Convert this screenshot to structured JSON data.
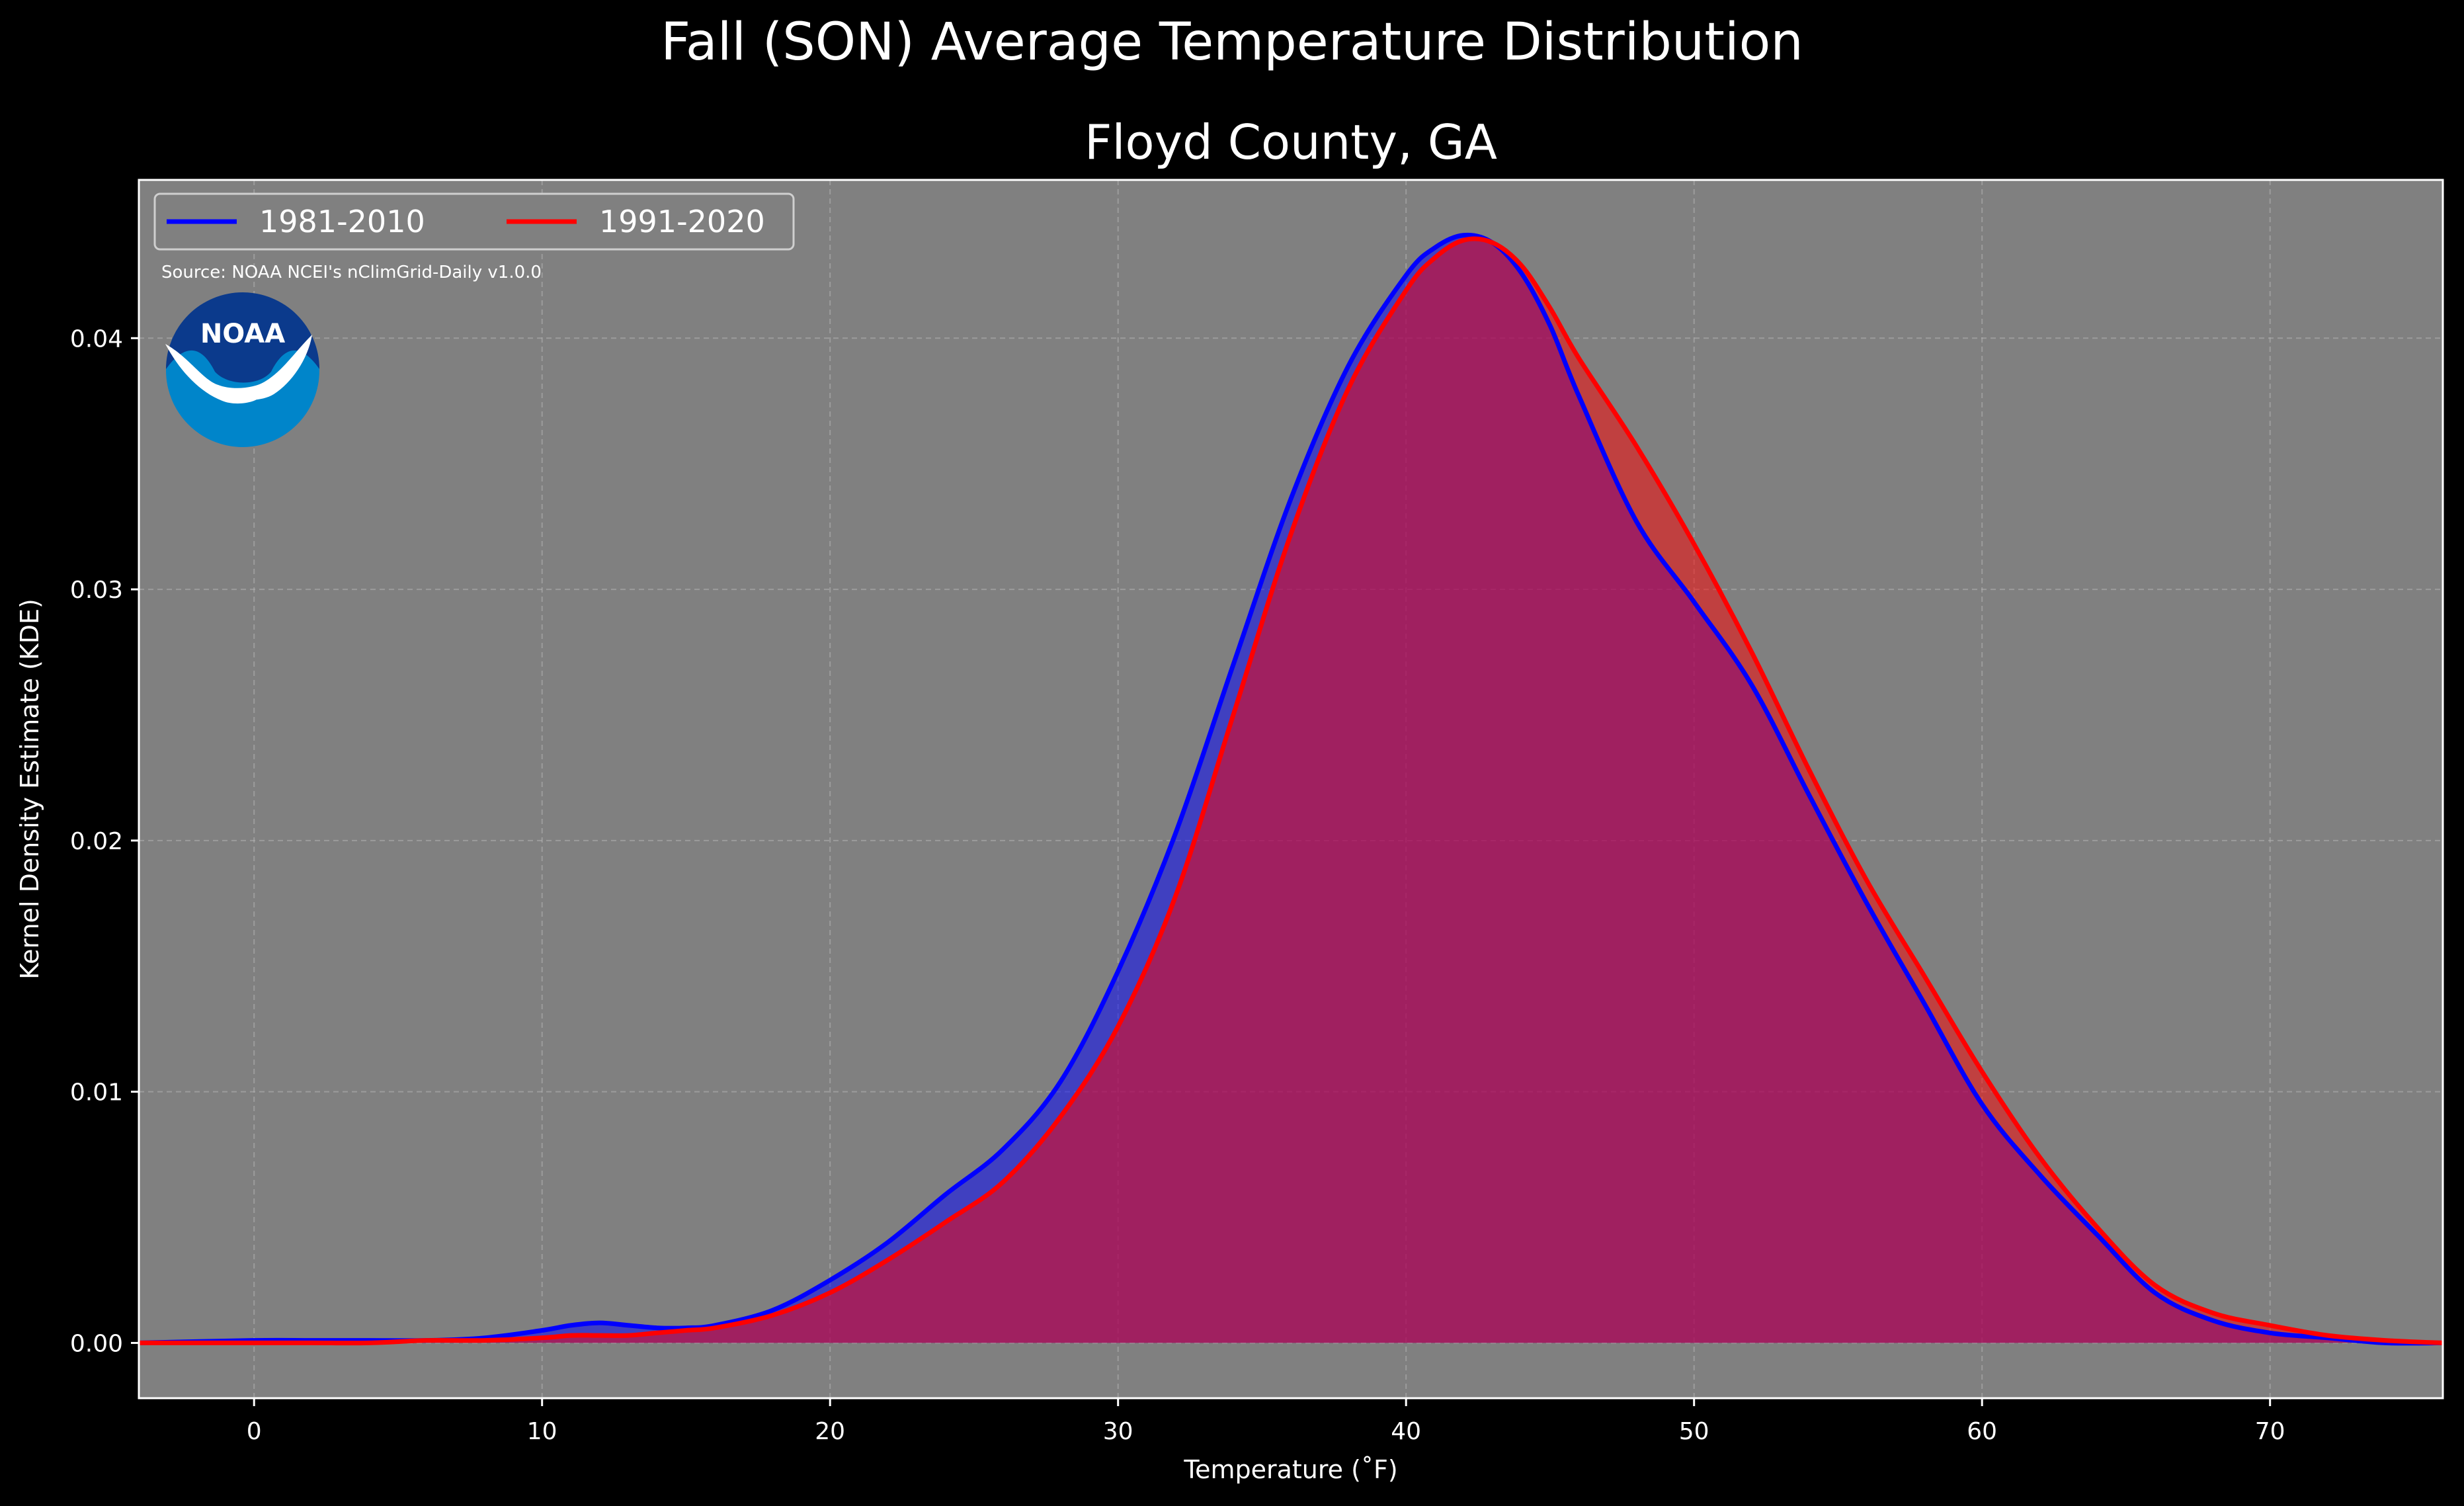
{
  "figure": {
    "suptitle": "Fall (SON) Average Temperature Distribution",
    "source_note": "Source: NOAA NCEI's nClimGrid-Daily v1.0.0",
    "logo_text": "NOAA"
  },
  "colors": {
    "background": "#000000",
    "plot_background": "#808080",
    "grid": "#b0b0b0",
    "series_1981_2010": "#0000ff",
    "series_1991_2020": "#ff0000",
    "logo_dark_blue": "#0b3a8c",
    "logo_light_blue": "#0085ca"
  },
  "chart_data": {
    "type": "area",
    "title": "Floyd County, GA",
    "xlabel": "Temperature ($^\\circ$F)",
    "xlabel_display": "Temperature (˚F)",
    "ylabel": "Kernel Density Estimate (KDE)",
    "xlim": [
      -4,
      76
    ],
    "ylim": [
      -0.0022,
      0.0463
    ],
    "xticks": [
      0,
      10,
      20,
      30,
      40,
      50,
      60,
      70
    ],
    "xtick_labels": [
      "0",
      "10",
      "20",
      "30",
      "40",
      "50",
      "60",
      "70"
    ],
    "yticks": [
      0.0,
      0.01,
      0.02,
      0.03,
      0.04
    ],
    "ytick_labels": [
      "0.00",
      "0.01",
      "0.02",
      "0.03",
      "0.04"
    ],
    "grid": true,
    "legend": "upper-left",
    "series": [
      {
        "name": "1981-2010",
        "color": "#0000ff",
        "x": [
          -4,
          0,
          2,
          4,
          6,
          8,
          10,
          11,
          12,
          13,
          14,
          15,
          16,
          18,
          20,
          22,
          24,
          26,
          28,
          30,
          32,
          34,
          36,
          38,
          40,
          41,
          42,
          43,
          44,
          45,
          46,
          48,
          50,
          52,
          54,
          56,
          58,
          60,
          62,
          64,
          66,
          68,
          70,
          72,
          74,
          76
        ],
        "y": [
          0.0,
          0.0001,
          0.0001,
          0.0001,
          0.0001,
          0.0002,
          0.0005,
          0.0007,
          0.0008,
          0.0007,
          0.0006,
          0.0006,
          0.0007,
          0.0013,
          0.0025,
          0.004,
          0.0059,
          0.0077,
          0.0104,
          0.0148,
          0.0203,
          0.027,
          0.0336,
          0.0389,
          0.0425,
          0.0436,
          0.0441,
          0.0438,
          0.0426,
          0.0405,
          0.0377,
          0.0327,
          0.0295,
          0.0262,
          0.0218,
          0.0175,
          0.0135,
          0.0095,
          0.0067,
          0.0043,
          0.002,
          0.0009,
          0.0004,
          0.0002,
          0.0,
          0.0
        ]
      },
      {
        "name": "1991-2020",
        "color": "#ff0000",
        "x": [
          -4,
          0,
          2,
          4,
          6,
          8,
          10,
          11,
          12,
          13,
          14,
          15,
          16,
          18,
          20,
          22,
          24,
          26,
          28,
          30,
          32,
          34,
          36,
          38,
          40,
          41,
          42,
          43,
          44,
          45,
          46,
          48,
          50,
          52,
          54,
          56,
          58,
          60,
          62,
          64,
          66,
          68,
          70,
          72,
          74,
          76
        ],
        "y": [
          0.0,
          0.0,
          0.0,
          0.0,
          0.0001,
          0.0001,
          0.0002,
          0.0003,
          0.0003,
          0.0003,
          0.0004,
          0.0005,
          0.0006,
          0.0011,
          0.002,
          0.0033,
          0.0048,
          0.0064,
          0.009,
          0.0126,
          0.0178,
          0.025,
          0.0322,
          0.038,
          0.0419,
          0.0432,
          0.0439,
          0.0438,
          0.0429,
          0.0412,
          0.0392,
          0.0357,
          0.0318,
          0.0275,
          0.0228,
          0.0184,
          0.0146,
          0.0108,
          0.0074,
          0.0046,
          0.0023,
          0.0012,
          0.0007,
          0.0003,
          0.0001,
          0.0
        ]
      }
    ]
  }
}
